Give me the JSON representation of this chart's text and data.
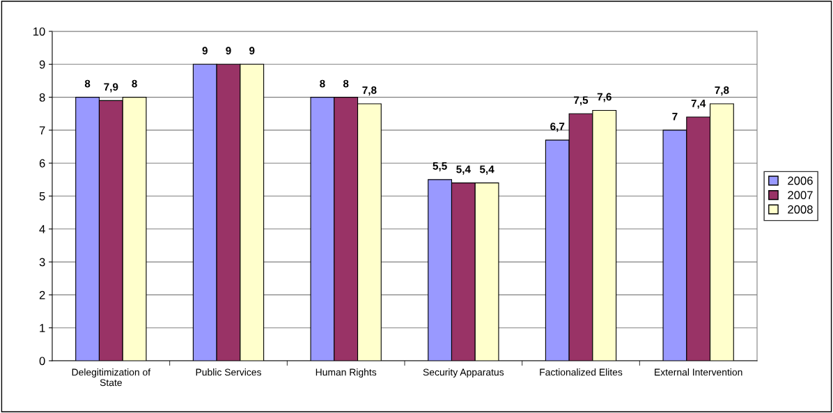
{
  "chart_data": {
    "type": "bar",
    "categories": [
      "Delegitimization of\nState",
      "Public Services",
      "Human Rights",
      "Security Apparatus",
      "Factionalized Elites",
      "External Intervention"
    ],
    "series": [
      {
        "name": "2006",
        "color": "#9999ff",
        "values": [
          8,
          9,
          8,
          5.5,
          6.7,
          7
        ],
        "value_labels": [
          "8",
          "9",
          "8",
          "5,5",
          "6,7",
          "7"
        ]
      },
      {
        "name": "2007",
        "color": "#993366",
        "values": [
          7.9,
          9,
          8,
          5.4,
          7.5,
          7.4
        ],
        "value_labels": [
          "7,9",
          "9",
          "8",
          "5,4",
          "7,5",
          "7,4"
        ]
      },
      {
        "name": "2008",
        "color": "#ffffcc",
        "values": [
          8,
          9,
          7.8,
          5.4,
          7.6,
          7.8
        ],
        "value_labels": [
          "8",
          "9",
          "7,8",
          "5,4",
          "7,6",
          "7,8"
        ]
      }
    ],
    "ylim": [
      0,
      10
    ],
    "yticks": [
      0,
      1,
      2,
      3,
      4,
      5,
      6,
      7,
      8,
      9,
      10
    ],
    "grid": "y",
    "legend": "right"
  }
}
